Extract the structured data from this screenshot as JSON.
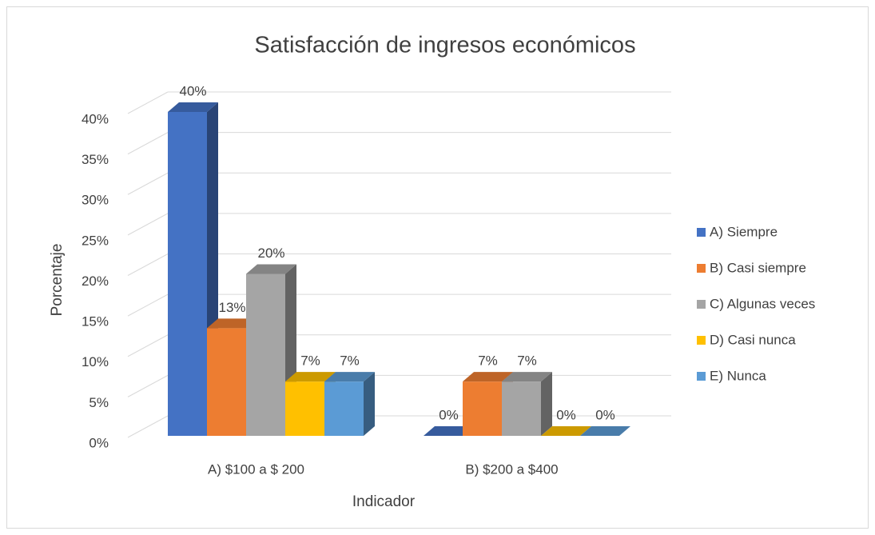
{
  "chart_data": {
    "type": "bar3d",
    "title": "Satisfacción de ingresos económicos",
    "xlabel": "Indicador",
    "ylabel": "Porcentaje",
    "categories": [
      "A) $100 a $ 200",
      "B) $200 a $400"
    ],
    "series": [
      {
        "name": "A) Siempre",
        "color": "#4472c4",
        "values": [
          40,
          0
        ],
        "value_labels": [
          "40%",
          "0%"
        ]
      },
      {
        "name": "B) Casi siempre",
        "color": "#ed7d31",
        "values": [
          13.3,
          6.7
        ],
        "value_labels": [
          "13%",
          "7%"
        ]
      },
      {
        "name": "C) Algunas veces",
        "color": "#a5a5a5",
        "values": [
          20,
          6.7
        ],
        "value_labels": [
          "20%",
          "7%"
        ]
      },
      {
        "name": "D) Casi nunca",
        "color": "#ffc000",
        "values": [
          6.7,
          0
        ],
        "value_labels": [
          "7%",
          "0%"
        ]
      },
      {
        "name": "E) Nunca",
        "color": "#5b9bd5",
        "values": [
          6.7,
          0
        ],
        "value_labels": [
          "7%",
          "0%"
        ]
      }
    ],
    "ylim": [
      0,
      40
    ],
    "yticks": [
      {
        "value": 0,
        "label": "0%"
      },
      {
        "value": 5,
        "label": "5%"
      },
      {
        "value": 10,
        "label": "10%"
      },
      {
        "value": 15,
        "label": "15%"
      },
      {
        "value": 20,
        "label": "20%"
      },
      {
        "value": 25,
        "label": "25%"
      },
      {
        "value": 30,
        "label": "30%"
      },
      {
        "value": 35,
        "label": "35%"
      },
      {
        "value": 40,
        "label": "40%"
      }
    ],
    "grid": true,
    "legend": "right"
  }
}
